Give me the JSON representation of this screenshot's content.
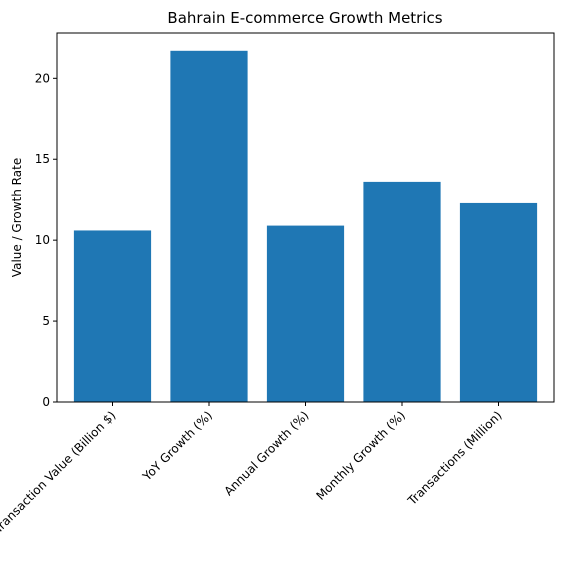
{
  "chart_data": {
    "type": "bar",
    "title": "Bahrain E-commerce Growth Metrics",
    "xlabel": "",
    "ylabel": "Value / Growth Rate",
    "categories": [
      "Transaction Value (Billion $)",
      "YoY Growth (%)",
      "Annual Growth (%)",
      "Monthly Growth (%)",
      "Transactions (Million)"
    ],
    "values": [
      10.6,
      21.7,
      10.9,
      13.6,
      12.3
    ],
    "ylim": [
      0,
      22.8
    ],
    "yticks": [
      0,
      5,
      10,
      15,
      20
    ],
    "grid": false,
    "bar_color": "#1f77b4"
  }
}
